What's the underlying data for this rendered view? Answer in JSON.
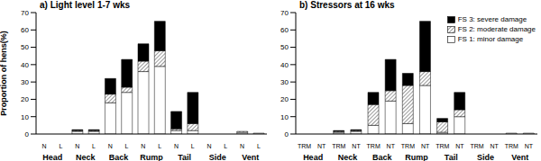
{
  "chart_data": [
    {
      "type": "bar",
      "title": "a) Light level 1-7 wks",
      "y_label": "Proportion of hens(%)",
      "stacked": true,
      "categories": [
        "N",
        "L",
        "N",
        "L",
        "N",
        "L",
        "N",
        "L",
        "N",
        "L",
        "N",
        "L",
        "N",
        "L"
      ],
      "groups": [
        "Head",
        "Neck",
        "Back",
        "Rump",
        "Tail",
        "Side",
        "Vent"
      ],
      "series": [
        {
          "name": "FS 1: minor damage",
          "color": "#ffffff",
          "values": [
            0,
            0,
            1.5,
            1.5,
            18,
            24,
            36,
            39,
            2,
            2,
            0,
            0,
            1,
            0.5
          ]
        },
        {
          "name": "FS 2: moderate damage",
          "color": "#808080",
          "values": [
            0,
            0,
            0.5,
            0.5,
            5,
            3,
            6,
            9,
            1,
            4,
            0,
            0,
            0.5,
            0
          ]
        },
        {
          "name": "FS 3: severe damage",
          "color": "#000000",
          "values": [
            0,
            0,
            0.5,
            0.5,
            9,
            16,
            10,
            17,
            10,
            18,
            0,
            0,
            0,
            0
          ]
        }
      ],
      "ylim": [
        0,
        70
      ],
      "yticks": [
        0,
        10,
        20,
        30,
        40,
        50,
        60,
        70
      ]
    },
    {
      "type": "bar",
      "title": "b) Stressors at 16 wks",
      "stacked": true,
      "legend": "upper right",
      "categories": [
        "TRM",
        "NT",
        "TRM",
        "NT",
        "TRM",
        "NT",
        "TRM",
        "NT",
        "TRM",
        "NT",
        "TRM",
        "NT",
        "TRM",
        "NT"
      ],
      "groups": [
        "Head",
        "Neck",
        "Back",
        "Rump",
        "Tail",
        "Side",
        "Vent"
      ],
      "series": [
        {
          "name": "FS 1: minor damage",
          "color": "#ffffff",
          "values": [
            0,
            0,
            1,
            1.5,
            5,
            19,
            6,
            28,
            1,
            10,
            0,
            0,
            0.5,
            0.5
          ]
        },
        {
          "name": "FS 2: moderate damage",
          "color": "#808080",
          "values": [
            0,
            0,
            0.5,
            0.5,
            12,
            6,
            22,
            8,
            6,
            4,
            0,
            0,
            0,
            0
          ]
        },
        {
          "name": "FS 3: severe damage",
          "color": "#000000",
          "values": [
            0,
            0,
            0.5,
            0.5,
            7,
            18,
            7,
            29,
            2,
            10,
            0,
            0,
            0,
            0
          ]
        }
      ],
      "ylim": [
        0,
        70
      ],
      "yticks": [
        0,
        10,
        20,
        30,
        40,
        50,
        60,
        70
      ]
    }
  ]
}
